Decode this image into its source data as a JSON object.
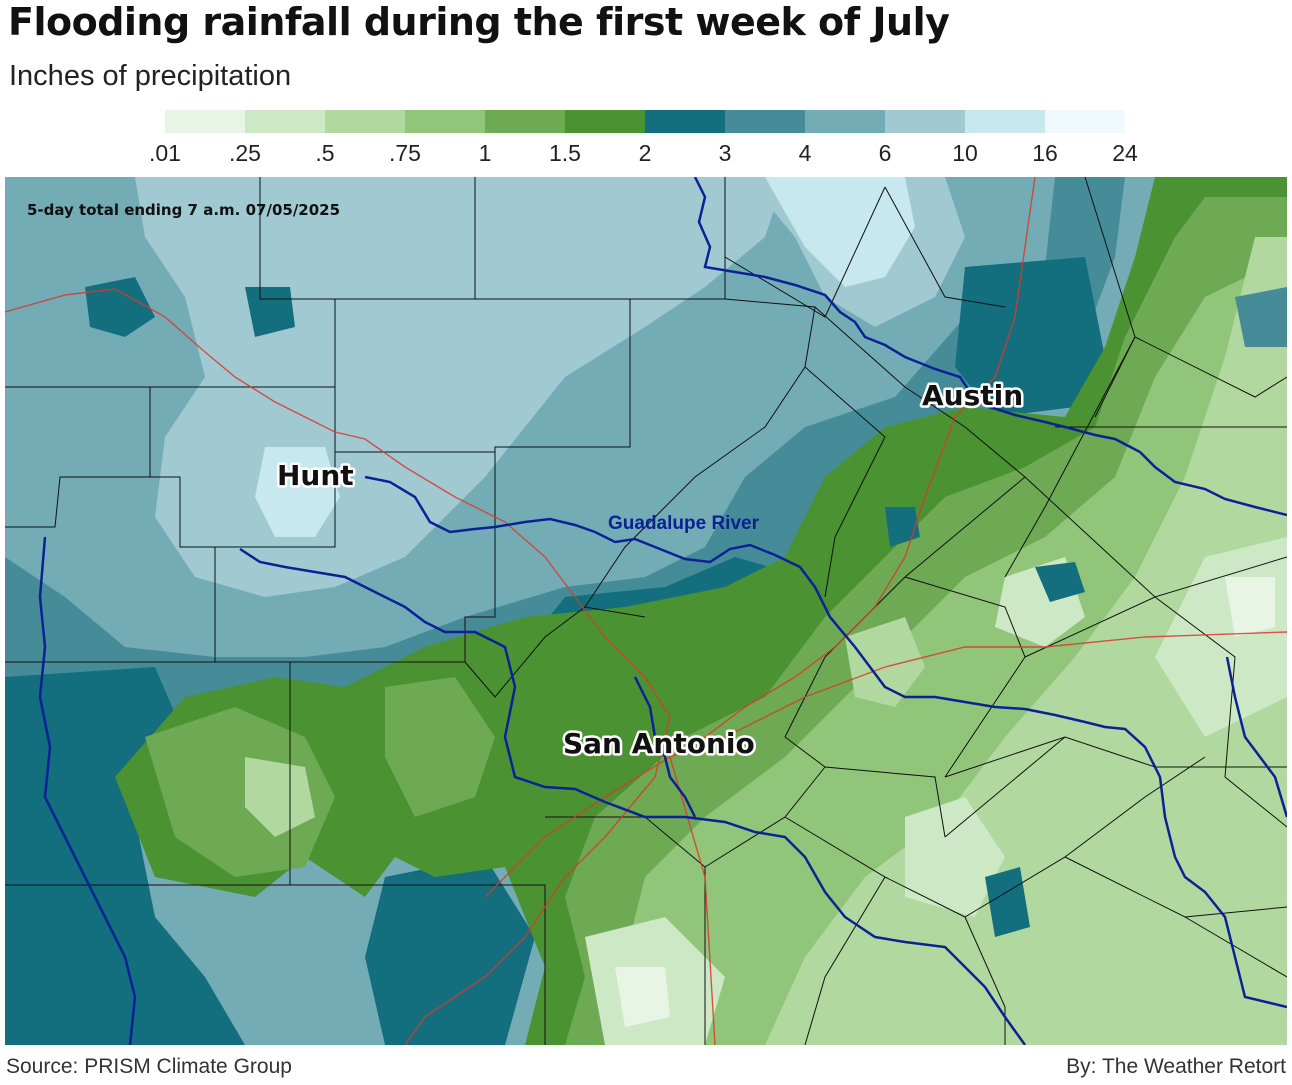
{
  "header": {
    "title": "Flooding rainfall during the first week of July",
    "subtitle": "Inches of precipitation"
  },
  "legend": {
    "ticks": [
      ".01",
      ".25",
      ".5",
      ".75",
      "1",
      "1.5",
      "2",
      "3",
      "4",
      "6",
      "10",
      "16",
      "24"
    ],
    "colors": [
      "#e8f5e4",
      "#cde8c5",
      "#b1d99f",
      "#91c579",
      "#6ea954",
      "#4a9232",
      "#136e7d",
      "#468c98",
      "#74acb6",
      "#a0c9d1",
      "#c7e8ee",
      "#eefaff"
    ]
  },
  "map": {
    "note": "5-day total ending 7 a.m. 07/05/2025",
    "cities": {
      "hunt": "Hunt",
      "austin": "Austin",
      "san_antonio": "San Antonio"
    },
    "river_label": "Guadalupe River",
    "colors": {
      "river": "#0b2296",
      "highway": "#d93a2b",
      "county_line": "#111111"
    }
  },
  "footer": {
    "source": "Source: PRISM Climate Group",
    "credit": "By: The Weather Retort"
  }
}
